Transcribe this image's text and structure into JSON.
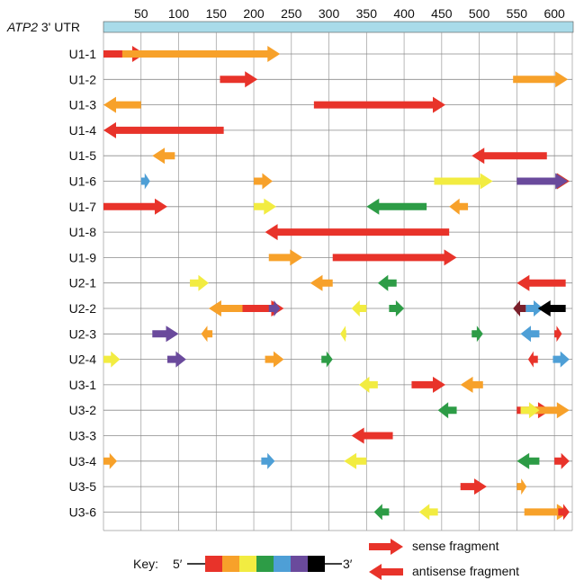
{
  "colors": {
    "red": "#e8332a",
    "orange": "#f7a12a",
    "yellow": "#f2ec41",
    "green": "#2d9c46",
    "blue": "#4e9fd6",
    "purple": "#6a4a9c",
    "black": "#000000",
    "maroon": "#7a1f2a",
    "band": "#a9dbe9"
  },
  "header": {
    "gene_italic": "ATP2",
    "gene_rest": " 3' UTR",
    "ticks": [
      "50",
      "100",
      "150",
      "200",
      "250",
      "300",
      "350",
      "400",
      "450",
      "500",
      "550",
      "600"
    ]
  },
  "key": {
    "label": "Key:",
    "five": "5′",
    "three": "3′",
    "palette": [
      "red",
      "orange",
      "yellow",
      "green",
      "blue",
      "purple",
      "black"
    ],
    "sense": "sense fragment",
    "antisense": "antisense fragment"
  },
  "rows": [
    {
      "label": "U1-1",
      "frags": [
        {
          "s": 0,
          "e": 55,
          "c": "red",
          "d": "r"
        },
        {
          "s": 25,
          "e": 235,
          "c": "orange",
          "d": "r"
        }
      ]
    },
    {
      "label": "U1-2",
      "frags": [
        {
          "s": 155,
          "e": 205,
          "c": "red",
          "d": "r"
        },
        {
          "s": 545,
          "e": 618,
          "c": "orange",
          "d": "r"
        }
      ]
    },
    {
      "label": "U1-3",
      "frags": [
        {
          "s": 0,
          "e": 50,
          "c": "orange",
          "d": "l"
        },
        {
          "s": 280,
          "e": 455,
          "c": "red",
          "d": "r"
        }
      ]
    },
    {
      "label": "U1-4",
      "frags": [
        {
          "s": 0,
          "e": 160,
          "c": "red",
          "d": "l"
        }
      ]
    },
    {
      "label": "U1-5",
      "frags": [
        {
          "s": 65,
          "e": 95,
          "c": "orange",
          "d": "l"
        },
        {
          "s": 490,
          "e": 590,
          "c": "red",
          "d": "l"
        }
      ]
    },
    {
      "label": "U1-6",
      "frags": [
        {
          "s": 50,
          "e": 62,
          "c": "blue",
          "d": "r"
        },
        {
          "s": 200,
          "e": 225,
          "c": "orange",
          "d": "r"
        },
        {
          "s": 440,
          "e": 518,
          "c": "yellow",
          "d": "r"
        },
        {
          "s": 575,
          "e": 620,
          "c": "green",
          "d": "r"
        },
        {
          "s": 580,
          "e": 620,
          "c": "red",
          "d": "r"
        },
        {
          "s": 550,
          "e": 618,
          "c": "purple",
          "d": "r"
        }
      ]
    },
    {
      "label": "U1-7",
      "frags": [
        {
          "s": 0,
          "e": 85,
          "c": "red",
          "d": "r"
        },
        {
          "s": 200,
          "e": 230,
          "c": "yellow",
          "d": "r"
        },
        {
          "s": 350,
          "e": 430,
          "c": "green",
          "d": "l"
        },
        {
          "s": 460,
          "e": 485,
          "c": "orange",
          "d": "l"
        }
      ]
    },
    {
      "label": "U1-8",
      "frags": [
        {
          "s": 215,
          "e": 460,
          "c": "red",
          "d": "l"
        }
      ]
    },
    {
      "label": "U1-9",
      "frags": [
        {
          "s": 220,
          "e": 265,
          "c": "orange",
          "d": "r"
        },
        {
          "s": 305,
          "e": 470,
          "c": "red",
          "d": "r"
        }
      ]
    },
    {
      "label": "U2-1",
      "frags": [
        {
          "s": 115,
          "e": 140,
          "c": "yellow",
          "d": "r"
        },
        {
          "s": 275,
          "e": 305,
          "c": "orange",
          "d": "l"
        },
        {
          "s": 365,
          "e": 390,
          "c": "green",
          "d": "l"
        },
        {
          "s": 550,
          "e": 615,
          "c": "red",
          "d": "l"
        }
      ]
    },
    {
      "label": "U2-2",
      "frags": [
        {
          "s": 150,
          "e": 240,
          "c": "red",
          "d": "r"
        },
        {
          "s": 140,
          "e": 185,
          "c": "orange",
          "d": "l"
        },
        {
          "s": 220,
          "e": 235,
          "c": "purple",
          "d": "r"
        },
        {
          "s": 330,
          "e": 350,
          "c": "yellow",
          "d": "l"
        },
        {
          "s": 380,
          "e": 400,
          "c": "green",
          "d": "r"
        },
        {
          "s": 545,
          "e": 562,
          "c": "maroon",
          "d": "l"
        },
        {
          "s": 562,
          "e": 585,
          "c": "blue",
          "d": "r"
        },
        {
          "s": 578,
          "e": 615,
          "c": "black",
          "d": "l"
        }
      ]
    },
    {
      "label": "U2-3",
      "frags": [
        {
          "s": 65,
          "e": 100,
          "c": "purple",
          "d": "r"
        },
        {
          "s": 130,
          "e": 145,
          "c": "orange",
          "d": "l"
        },
        {
          "s": 315,
          "e": 323,
          "c": "yellow",
          "d": "l"
        },
        {
          "s": 490,
          "e": 505,
          "c": "green",
          "d": "r"
        },
        {
          "s": 555,
          "e": 580,
          "c": "blue",
          "d": "l"
        },
        {
          "s": 600,
          "e": 610,
          "c": "red",
          "d": "r"
        }
      ]
    },
    {
      "label": "U2-4",
      "frags": [
        {
          "s": 0,
          "e": 22,
          "c": "yellow",
          "d": "r"
        },
        {
          "s": 85,
          "e": 110,
          "c": "purple",
          "d": "r"
        },
        {
          "s": 215,
          "e": 240,
          "c": "orange",
          "d": "r"
        },
        {
          "s": 290,
          "e": 305,
          "c": "green",
          "d": "r"
        },
        {
          "s": 565,
          "e": 578,
          "c": "red",
          "d": "l"
        },
        {
          "s": 598,
          "e": 620,
          "c": "blue",
          "d": "r"
        }
      ]
    },
    {
      "label": "U3-1",
      "frags": [
        {
          "s": 340,
          "e": 365,
          "c": "yellow",
          "d": "l"
        },
        {
          "s": 410,
          "e": 455,
          "c": "red",
          "d": "r"
        },
        {
          "s": 475,
          "e": 505,
          "c": "orange",
          "d": "l"
        }
      ]
    },
    {
      "label": "U3-2",
      "frags": [
        {
          "s": 445,
          "e": 470,
          "c": "green",
          "d": "l"
        },
        {
          "s": 550,
          "e": 595,
          "c": "red",
          "d": "r"
        },
        {
          "s": 565,
          "e": 620,
          "c": "orange",
          "d": "r"
        },
        {
          "s": 555,
          "e": 580,
          "c": "yellow",
          "d": "r"
        }
      ]
    },
    {
      "label": "U3-3",
      "frags": [
        {
          "s": 330,
          "e": 385,
          "c": "red",
          "d": "l"
        }
      ]
    },
    {
      "label": "U3-4",
      "frags": [
        {
          "s": 0,
          "e": 18,
          "c": "orange",
          "d": "r"
        },
        {
          "s": 210,
          "e": 228,
          "c": "blue",
          "d": "r"
        },
        {
          "s": 320,
          "e": 350,
          "c": "yellow",
          "d": "l"
        },
        {
          "s": 550,
          "e": 580,
          "c": "green",
          "d": "l"
        },
        {
          "s": 600,
          "e": 620,
          "c": "red",
          "d": "r"
        }
      ]
    },
    {
      "label": "U3-5",
      "frags": [
        {
          "s": 475,
          "e": 510,
          "c": "red",
          "d": "r"
        },
        {
          "s": 550,
          "e": 563,
          "c": "orange",
          "d": "r"
        }
      ]
    },
    {
      "label": "U3-6",
      "frags": [
        {
          "s": 360,
          "e": 380,
          "c": "green",
          "d": "l"
        },
        {
          "s": 420,
          "e": 445,
          "c": "yellow",
          "d": "l"
        },
        {
          "s": 560,
          "e": 620,
          "c": "orange",
          "d": "r"
        },
        {
          "s": 605,
          "e": 620,
          "c": "red",
          "d": "r"
        }
      ]
    }
  ]
}
